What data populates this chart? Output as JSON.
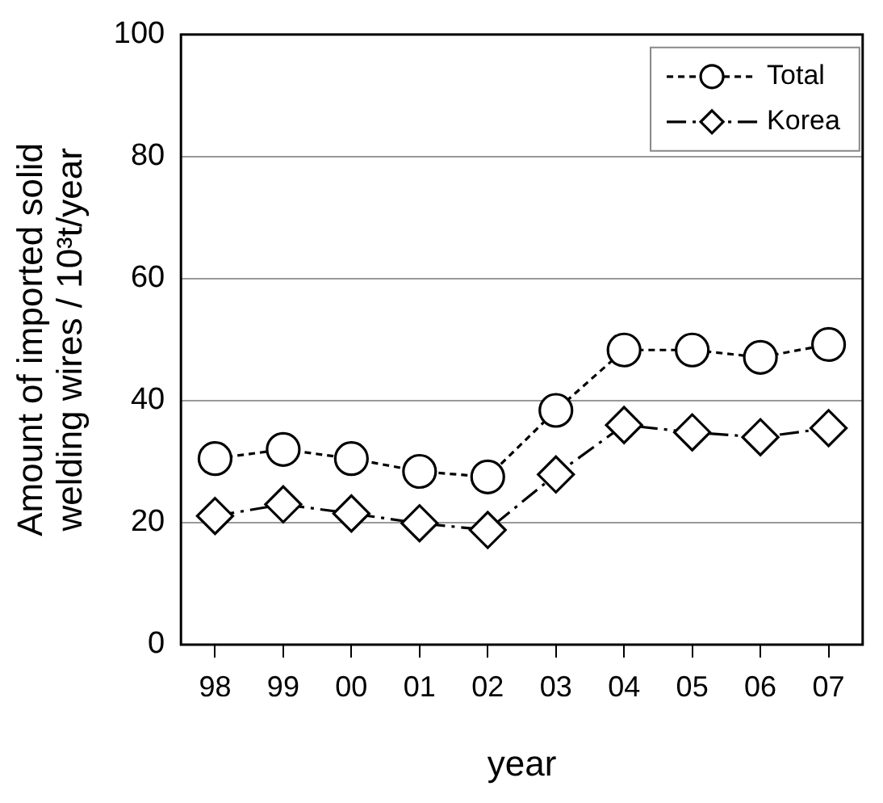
{
  "chart_data": {
    "type": "line",
    "xlabel": "year",
    "ylabel": "Amount of imported solid\nwelding wires / 10³t/year",
    "categories": [
      "98",
      "99",
      "00",
      "01",
      "02",
      "03",
      "04",
      "05",
      "06",
      "07"
    ],
    "series": [
      {
        "name": "Total",
        "color": "#000000",
        "marker": "circle",
        "line_style": "dotted",
        "values": [
          30.5,
          32,
          30.5,
          28.4,
          27.5,
          38.4,
          48.3,
          48.3,
          47.1,
          49.2
        ]
      },
      {
        "name": "Korea",
        "color": "#000000",
        "marker": "diamond",
        "line_style": "dashed",
        "values": [
          21.1,
          23,
          21.5,
          19.9,
          18.8,
          27.9,
          36,
          34.8,
          34,
          35.5
        ]
      }
    ],
    "ylim": [
      0,
      100
    ],
    "yticks": [
      0,
      20,
      40,
      60,
      80,
      100
    ],
    "grid": "y",
    "legend": "top right"
  }
}
